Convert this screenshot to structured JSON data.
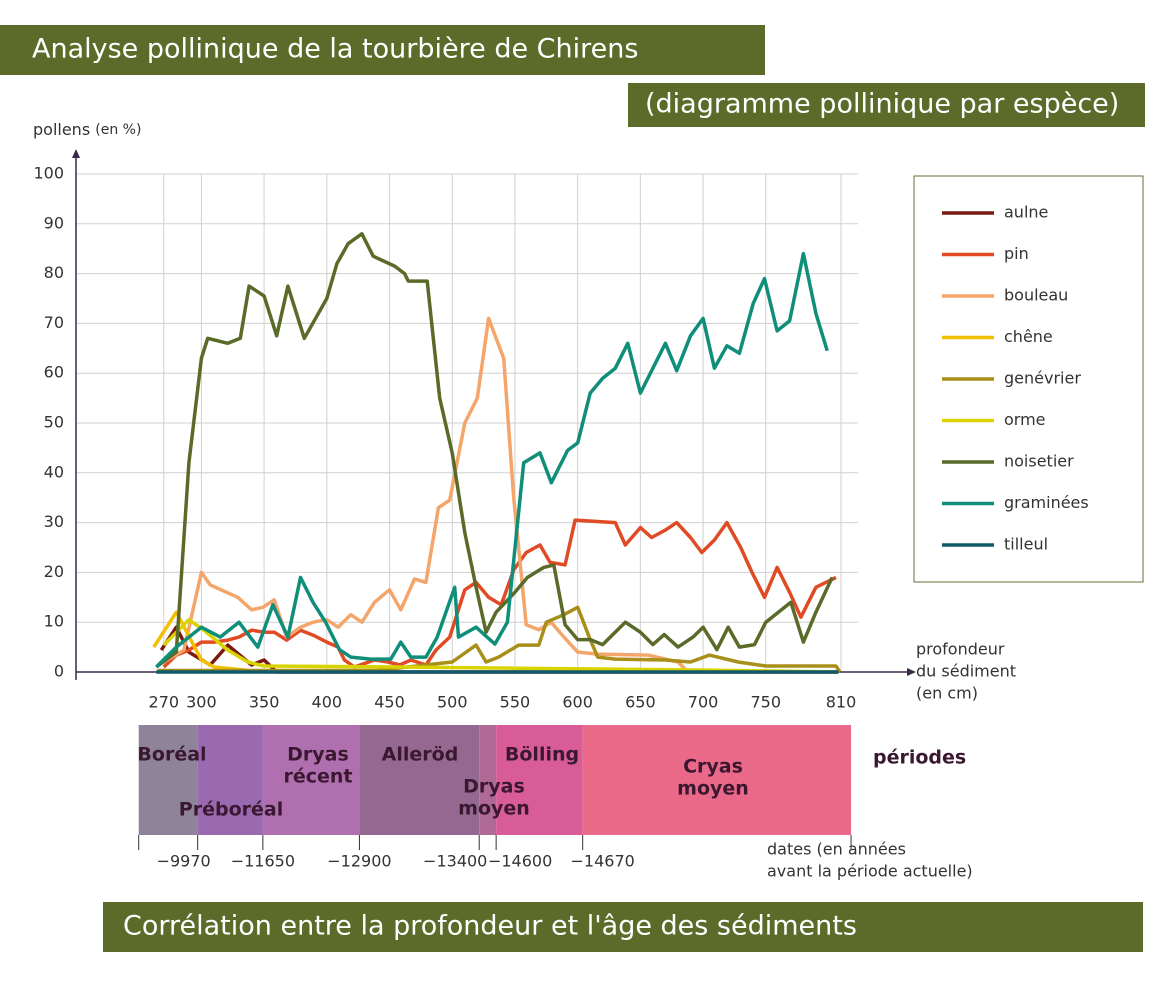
{
  "chart_data": {
    "type": "line",
    "title": "Analyse pollinique de la tourbière de Chirens",
    "subtitle": "(diagramme pollinique par espèce)",
    "footer": "Corrélation entre la profondeur et l'âge des sédiments",
    "y_label": {
      "main": "pollens",
      "unit": "(en %)"
    },
    "x_label": [
      "profondeur",
      "du sédiment",
      "(en cm)"
    ],
    "xlim": [
      200,
      865
    ],
    "ylim": [
      0,
      100
    ],
    "xticks": [
      270,
      300,
      350,
      400,
      450,
      500,
      550,
      600,
      650,
      700,
      750,
      810
    ],
    "yticks": [
      0,
      10,
      20,
      30,
      40,
      50,
      60,
      70,
      80,
      90,
      100
    ],
    "grid": true,
    "series": [
      {
        "name": "aulne",
        "color": "#7a1a10",
        "x": [
          268,
          280,
          290,
          307,
          321,
          340,
          350,
          360,
          808
        ],
        "values": [
          4.4,
          9,
          4,
          1.4,
          5.4,
          1.4,
          2.4,
          0,
          0
        ]
      },
      {
        "name": "pin",
        "color": "#e04a25",
        "x": [
          270,
          280,
          290,
          300,
          310,
          321,
          330,
          340,
          350,
          358,
          368,
          379,
          389,
          400,
          409,
          414,
          422,
          438,
          449,
          458,
          467,
          479,
          487,
          498,
          510,
          519,
          529,
          539,
          549,
          559,
          570,
          578,
          590,
          598,
          630,
          638,
          650,
          659,
          670,
          679,
          690,
          699,
          709,
          719,
          730,
          739,
          749,
          759,
          769,
          778,
          790,
          806
        ],
        "values": [
          1,
          3.4,
          4.4,
          6,
          6,
          6.4,
          7,
          8.4,
          8,
          8,
          6.4,
          8.4,
          7.4,
          6,
          5,
          2.4,
          1,
          2.4,
          2,
          1.4,
          2.4,
          1.4,
          4.4,
          7,
          16.5,
          18,
          15,
          13.5,
          20.5,
          24,
          25.5,
          22,
          21.5,
          30.5,
          30,
          25.5,
          29,
          27,
          28.5,
          30,
          27,
          24,
          26.5,
          30,
          25,
          20,
          15,
          21,
          16,
          11,
          17,
          19
        ]
      },
      {
        "name": "bouleau",
        "color": "#f4a56a",
        "x": [
          270,
          286,
          300,
          307,
          320,
          329,
          340,
          349,
          358,
          368,
          379,
          389,
          400,
          409,
          419,
          428,
          438,
          450,
          459,
          470,
          479,
          489,
          498,
          510,
          520,
          529,
          541,
          549,
          559,
          569,
          579,
          589,
          600,
          616,
          656,
          680,
          688
        ],
        "values": [
          2,
          4.4,
          20,
          17.5,
          16,
          15,
          12.5,
          13,
          14.5,
          7,
          9,
          10,
          10.5,
          9,
          11.5,
          10,
          14,
          16.5,
          12.5,
          18.7,
          18,
          33,
          34.5,
          50,
          55,
          71,
          63,
          35,
          9.5,
          8.5,
          10,
          7,
          4,
          3.6,
          3.4,
          2,
          0
        ]
      },
      {
        "name": "chêne",
        "color": "#f2c000",
        "x": [
          262,
          280,
          300,
          310,
          350,
          360
        ],
        "values": [
          5,
          12,
          2.4,
          1,
          0,
          0
        ]
      },
      {
        "name": "genévrier",
        "color": "#a88f1a",
        "x": [
          265,
          350,
          440,
          500,
          519,
          527,
          537,
          553,
          569,
          575,
          589,
          600,
          610,
          616,
          630,
          670,
          690,
          705,
          728,
          750,
          806,
          809
        ],
        "values": [
          0.3,
          0.3,
          0.3,
          2,
          5.4,
          2,
          3,
          5.4,
          5.4,
          10,
          11.5,
          13,
          6.5,
          3,
          2.6,
          2.4,
          2,
          3.4,
          2,
          1.2,
          1.2,
          0
        ]
      },
      {
        "name": "orme",
        "color": "#d9d400",
        "x": [
          270,
          290,
          302,
          321,
          337,
          350,
          457,
          537,
          696,
          808
        ],
        "values": [
          5.4,
          10.5,
          8.4,
          4.4,
          2,
          1.2,
          1,
          0.8,
          0.4,
          0
        ]
      },
      {
        "name": "noisetier",
        "color": "#5a6a28",
        "x": [
          264,
          280,
          290,
          300,
          305,
          321,
          331,
          338,
          350,
          360,
          369,
          382,
          400,
          408,
          417,
          428,
          437,
          454,
          462,
          465,
          480,
          490,
          500,
          510,
          519,
          527,
          535,
          550,
          560,
          573,
          581,
          590,
          600,
          610,
          620,
          638,
          650,
          660,
          669,
          680,
          692,
          700,
          711,
          720,
          729,
          741,
          750,
          770,
          780,
          790,
          803
        ],
        "values": [
          1,
          4,
          42,
          63,
          67,
          66,
          67,
          77.5,
          75.5,
          67.5,
          77.5,
          67,
          75,
          82,
          86,
          88,
          83.5,
          81.5,
          80,
          78.5,
          78.5,
          55,
          44,
          28,
          17,
          8,
          12,
          16,
          19,
          21,
          21.5,
          9.5,
          6.5,
          6.5,
          5.5,
          10,
          8,
          5.5,
          7.5,
          5,
          7,
          9,
          4.5,
          9,
          5,
          5.5,
          10,
          14,
          6,
          12,
          19
        ]
      },
      {
        "name": "graminées",
        "color": "#0f8e7a",
        "x": [
          264,
          280,
          300,
          315,
          330,
          345,
          357,
          369,
          379,
          389,
          399,
          410,
          419,
          435,
          451,
          459,
          467,
          479,
          488,
          502,
          505,
          519,
          534,
          544,
          557,
          570,
          579,
          592,
          600,
          610,
          620,
          630,
          640,
          650,
          660,
          670,
          679,
          690,
          700,
          709,
          719,
          729,
          740,
          749,
          759,
          769,
          780,
          790,
          799
        ],
        "values": [
          1,
          5,
          9,
          7,
          10,
          5,
          13.5,
          7,
          19,
          14,
          10,
          4.5,
          3,
          2.6,
          2.6,
          6,
          3,
          3,
          7,
          17,
          7,
          9,
          5.6,
          10,
          42,
          44,
          38,
          44.5,
          46,
          56,
          59,
          61,
          66,
          56,
          61,
          66,
          60.5,
          67.5,
          71,
          61,
          65.5,
          64,
          74,
          79,
          68.5,
          70.5,
          84,
          72,
          64.5
        ]
      },
      {
        "name": "tilleul",
        "color": "#0f5a6a",
        "x": [
          264,
          808
        ],
        "values": [
          0,
          0
        ]
      }
    ],
    "periods_label": "périodes",
    "periods": [
      {
        "name": [
          "Boréal"
        ],
        "color": "#8e8399",
        "from": 250,
        "to": 297
      },
      {
        "name": [
          "Préboréal"
        ],
        "color": "#9a6ab0",
        "from": 297,
        "to": 349
      },
      {
        "name": [
          "Dryas",
          "récent"
        ],
        "color": "#b070b0",
        "from": 349,
        "to": 426
      },
      {
        "name": [
          "Alleröd"
        ],
        "color": "#946890",
        "from": 426,
        "to": 521.5
      },
      {
        "name": [
          "Dryas",
          "moyen"
        ],
        "color": "#b06a98",
        "from": 521.5,
        "to": 535
      },
      {
        "name": [
          "Bölling"
        ],
        "color": "#d85c98",
        "from": 535,
        "to": 604
      },
      {
        "name": [
          "Cryas",
          "moyen"
        ],
        "color": "#ea6888",
        "from": 604,
        "to": 818
      }
    ],
    "dates_label": [
      "dates (en années",
      "avant la période actuelle)"
    ],
    "dates": [
      {
        "value": -9970,
        "label": "−9970",
        "depth": 297
      },
      {
        "value": -11650,
        "label": "−11650",
        "depth": 349
      },
      {
        "value": -12900,
        "label": "−12900",
        "depth": 426
      },
      {
        "value": -13400,
        "label": "−13400",
        "depth": 521.5
      },
      {
        "value": -14600,
        "label": "−14600",
        "depth": 535
      },
      {
        "value": -14670,
        "label": "−14670",
        "depth": 604
      }
    ]
  }
}
